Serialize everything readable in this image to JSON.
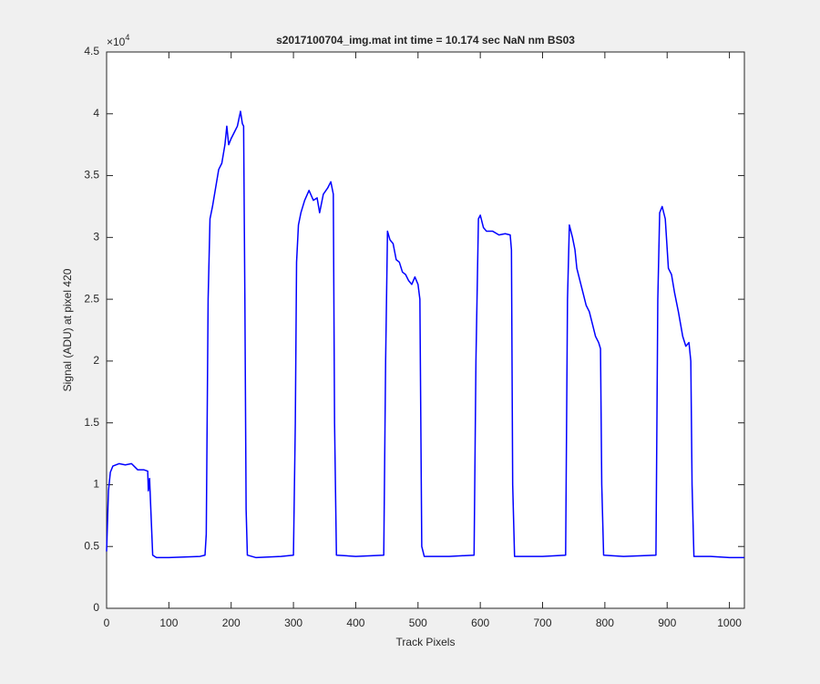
{
  "chart_data": {
    "type": "line",
    "title": "s2017100704_img.mat int time = 10.174 sec  NaN nm BS03",
    "x_label": "Track Pixels",
    "y_label": "Signal (ADU) at pixel 420",
    "y_multiplier_base": "×10",
    "y_multiplier_exponent": "4",
    "color": "#0000ff",
    "xlim": [
      0,
      1024
    ],
    "xticks": [
      0,
      100,
      200,
      300,
      400,
      500,
      600,
      700,
      800,
      900,
      1000
    ],
    "ylim": [
      0,
      4.5
    ],
    "yticks": [
      0,
      0.5,
      1,
      1.5,
      2,
      2.5,
      3,
      3.5,
      4,
      4.5
    ],
    "x": [
      0,
      3,
      6,
      10,
      20,
      30,
      40,
      50,
      60,
      66,
      67,
      69,
      71,
      74,
      80,
      100,
      150,
      158,
      160,
      163,
      166,
      170,
      175,
      180,
      185,
      190,
      193,
      196,
      200,
      205,
      210,
      215,
      218,
      220,
      222,
      224,
      226,
      240,
      280,
      300,
      303,
      305,
      308,
      312,
      318,
      325,
      332,
      338,
      342,
      348,
      355,
      360,
      364,
      366,
      369,
      400,
      445,
      448,
      451,
      455,
      460,
      465,
      470,
      475,
      480,
      485,
      490,
      495,
      500,
      503,
      506,
      510,
      550,
      590,
      593,
      597,
      600,
      605,
      610,
      620,
      630,
      640,
      648,
      650,
      652,
      655,
      700,
      737,
      740,
      743,
      748,
      752,
      755,
      760,
      765,
      770,
      775,
      780,
      785,
      790,
      793,
      795,
      798,
      830,
      882,
      885,
      888,
      892,
      897,
      902,
      907,
      912,
      918,
      925,
      930,
      935,
      938,
      940,
      943,
      970,
      1000,
      1024
    ],
    "values": [
      0.46,
      0.95,
      1.1,
      1.15,
      1.17,
      1.16,
      1.17,
      1.12,
      1.12,
      1.11,
      0.95,
      1.05,
      0.8,
      0.43,
      0.41,
      0.41,
      0.42,
      0.43,
      0.6,
      2.5,
      3.15,
      3.25,
      3.4,
      3.55,
      3.6,
      3.75,
      3.9,
      3.75,
      3.8,
      3.85,
      3.9,
      4.02,
      3.92,
      3.9,
      2.5,
      0.8,
      0.43,
      0.41,
      0.42,
      0.43,
      1.5,
      2.8,
      3.1,
      3.2,
      3.3,
      3.38,
      3.3,
      3.32,
      3.2,
      3.35,
      3.4,
      3.45,
      3.35,
      1.5,
      0.43,
      0.42,
      0.43,
      2.0,
      3.05,
      2.98,
      2.95,
      2.82,
      2.8,
      2.72,
      2.7,
      2.65,
      2.62,
      2.68,
      2.62,
      2.5,
      0.5,
      0.42,
      0.42,
      0.43,
      2.0,
      3.15,
      3.18,
      3.08,
      3.05,
      3.05,
      3.02,
      3.03,
      3.02,
      2.9,
      1.0,
      0.42,
      0.42,
      0.43,
      2.5,
      3.1,
      3.0,
      2.9,
      2.75,
      2.65,
      2.55,
      2.45,
      2.4,
      2.3,
      2.2,
      2.15,
      2.1,
      1.0,
      0.43,
      0.42,
      0.43,
      2.5,
      3.2,
      3.25,
      3.15,
      2.75,
      2.7,
      2.55,
      2.4,
      2.2,
      2.12,
      2.15,
      2.0,
      1.0,
      0.42,
      0.42,
      0.41,
      0.41
    ]
  }
}
